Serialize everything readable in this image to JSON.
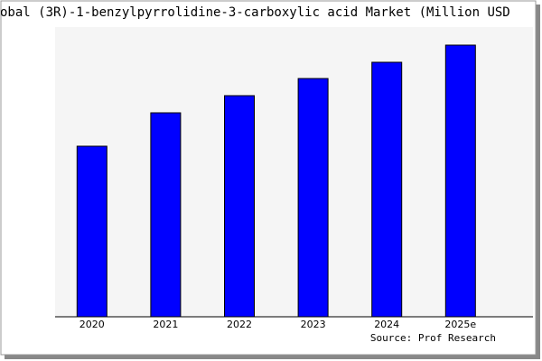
{
  "chart_data": {
    "type": "bar",
    "title": "obal (3R)-1-benzylpyrrolidine-3-carboxylic acid Market (Million USD",
    "source": "Source: Prof Research",
    "categories": [
      "2020",
      "2021",
      "2022",
      "2023",
      "2024",
      "2025e"
    ],
    "values": [
      189,
      226,
      245,
      264,
      282,
      301
    ],
    "color": "#0000ff",
    "ylim": [
      0,
      321
    ]
  }
}
